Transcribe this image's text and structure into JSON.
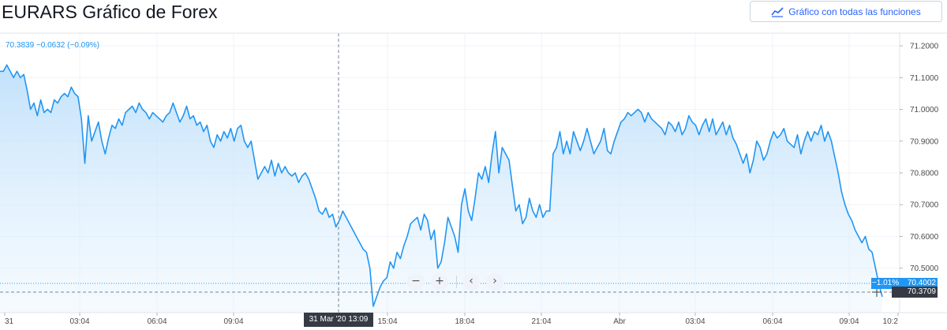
{
  "header": {
    "title": "EURARS Gráfico de Forex",
    "full_chart_button_label": "Gráfico con todas las funciones",
    "full_chart_button_icon": "chart-line-icon"
  },
  "legend": {
    "price": "70.3839",
    "change": "−0.0632",
    "change_pct": "(−0.09%)"
  },
  "crosshair": {
    "x_label": "31 Mar '20   13:09",
    "y_label": "70.3709"
  },
  "last_price": {
    "pct": "−1.01%",
    "value": "70.4002"
  },
  "navigation": {
    "zoom_out_icon": "minus-icon",
    "zoom_in_icon": "plus-icon",
    "scroll_left_icon": "chevron-left-icon",
    "scroll_right_icon": "chevron-right-icon"
  },
  "colors": {
    "line": "#2196f3",
    "area_top": "#bbdefb",
    "area_bottom": "#ffffff",
    "label_bg": "#363a45",
    "grid": "#f0f3fa"
  },
  "chart_data": {
    "type": "area",
    "series": [
      {
        "values": [
          71.12,
          71.12,
          71.14,
          71.12,
          71.1,
          71.12,
          71.1,
          71.11,
          71.06,
          71.0,
          71.02,
          70.98,
          71.03,
          70.99,
          71.0,
          70.99,
          71.03,
          71.02,
          71.04,
          71.05,
          71.04,
          71.07,
          71.05,
          71.04,
          70.97,
          70.83,
          70.98,
          70.9,
          70.93,
          70.96,
          70.9,
          70.86,
          70.91,
          70.95,
          70.94,
          70.97,
          70.95,
          70.99,
          71.0,
          71.01,
          70.99,
          71.02,
          71.0,
          70.99,
          70.97,
          70.99,
          70.98,
          70.97,
          70.96,
          70.98,
          70.99,
          71.02,
          70.99,
          70.96,
          70.98,
          71.01,
          70.97,
          70.98,
          70.95,
          70.96,
          70.93,
          70.95,
          70.9,
          70.88,
          70.92,
          70.9,
          70.93,
          70.91,
          70.94,
          70.9,
          70.94,
          70.95,
          70.9,
          70.88,
          70.9,
          70.84,
          70.78,
          70.8,
          70.82,
          70.8,
          70.84,
          70.79,
          70.83,
          70.8,
          70.82,
          70.8,
          70.79,
          70.8,
          70.77,
          70.79,
          70.8,
          70.78,
          70.75,
          70.72,
          70.68,
          70.67,
          70.69,
          70.66,
          70.67,
          70.63,
          70.65,
          70.68,
          70.66,
          70.64,
          70.62,
          70.6,
          70.58,
          70.56,
          70.55,
          70.5,
          70.38,
          70.41,
          70.44,
          70.46,
          70.47,
          70.52,
          70.5,
          70.55,
          70.53,
          70.57,
          70.6,
          70.64,
          70.65,
          70.66,
          70.62,
          70.67,
          70.65,
          70.59,
          70.62,
          70.5,
          70.52,
          70.58,
          70.66,
          70.63,
          70.6,
          70.55,
          70.7,
          70.75,
          70.68,
          70.65,
          70.72,
          70.8,
          70.78,
          70.82,
          70.77,
          70.86,
          70.93,
          70.8,
          70.88,
          70.86,
          70.84,
          70.76,
          70.68,
          70.7,
          70.64,
          70.66,
          70.72,
          70.68,
          70.66,
          70.7,
          70.66,
          70.68,
          70.68,
          70.86,
          70.88,
          70.93,
          70.86,
          70.9,
          70.86,
          70.93,
          70.9,
          70.87,
          70.9,
          70.94,
          70.9,
          70.86,
          70.88,
          70.9,
          70.94,
          70.87,
          70.86,
          70.9,
          70.93,
          70.96,
          70.97,
          70.99,
          70.98,
          70.99,
          71.0,
          70.99,
          70.96,
          70.99,
          70.97,
          70.96,
          70.95,
          70.94,
          70.92,
          70.96,
          70.95,
          70.93,
          70.96,
          70.92,
          70.94,
          70.98,
          70.96,
          70.95,
          70.92,
          70.95,
          70.97,
          70.93,
          70.97,
          70.92,
          70.94,
          70.96,
          70.92,
          70.95,
          70.91,
          70.89,
          70.86,
          70.83,
          70.86,
          70.8,
          70.84,
          70.9,
          70.88,
          70.84,
          70.86,
          70.9,
          70.93,
          70.91,
          70.92,
          70.94,
          70.9,
          70.89,
          70.88,
          70.92,
          70.86,
          70.9,
          70.93,
          70.9,
          70.93,
          70.92,
          70.95,
          70.9,
          70.93,
          70.9,
          70.85,
          70.8,
          70.74,
          70.7,
          70.67,
          70.65,
          70.62,
          70.6,
          70.58,
          70.6,
          70.56,
          70.55,
          70.5,
          70.45,
          70.41
        ],
        "last_label": "70.4002"
      }
    ],
    "x_ticks": [
      "31",
      "03:04",
      "06:04",
      "09:04",
      "15:04",
      "18:04",
      "21:04",
      "Abr",
      "03:04",
      "06:04",
      "09:04",
      "10:2"
    ],
    "y_ticks": [
      "71.2000",
      "71.1000",
      "71.0000",
      "70.9000",
      "70.8000",
      "70.7000",
      "70.6000",
      "70.5000"
    ],
    "ylim": [
      70.36,
      71.24
    ],
    "grid": true
  }
}
